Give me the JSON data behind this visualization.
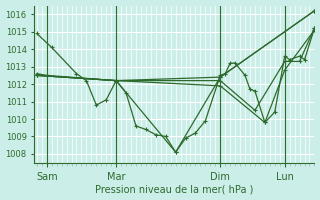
{
  "xlabel": "Pression niveau de la mer( hPa )",
  "bg_color": "#cceee8",
  "grid_color": "#b0d8d4",
  "line_color": "#2d6a2d",
  "ylim": [
    1007.5,
    1016.5
  ],
  "xlim": [
    -0.5,
    56
  ],
  "yticks": [
    1008,
    1009,
    1010,
    1011,
    1012,
    1013,
    1014,
    1015,
    1016
  ],
  "xtick_labels": [
    "Sam",
    "Mar",
    "Dim",
    "Lun"
  ],
  "xtick_positions": [
    2,
    16,
    37,
    50
  ],
  "vline_positions": [
    2,
    16,
    37,
    50
  ],
  "lines": [
    [
      [
        0,
        1014.9
      ],
      [
        3,
        1014.1
      ],
      [
        8,
        1012.6
      ],
      [
        10,
        1012.2
      ],
      [
        12,
        1010.8
      ],
      [
        14,
        1011.1
      ],
      [
        16,
        1012.2
      ],
      [
        18,
        1011.5
      ],
      [
        20,
        1009.6
      ],
      [
        22,
        1009.4
      ],
      [
        24,
        1009.1
      ],
      [
        26,
        1009.0
      ],
      [
        28,
        1008.1
      ],
      [
        30,
        1008.9
      ],
      [
        32,
        1009.2
      ],
      [
        34,
        1009.9
      ],
      [
        37,
        1012.5
      ],
      [
        38,
        1012.6
      ],
      [
        39,
        1013.2
      ],
      [
        40,
        1013.2
      ],
      [
        42,
        1012.5
      ],
      [
        43,
        1011.7
      ],
      [
        44,
        1011.6
      ],
      [
        46,
        1009.8
      ],
      [
        48,
        1010.4
      ],
      [
        50,
        1013.6
      ],
      [
        51,
        1013.4
      ],
      [
        53,
        1013.6
      ],
      [
        54,
        1013.4
      ],
      [
        56,
        1015.2
      ]
    ],
    [
      [
        0,
        1012.6
      ],
      [
        2,
        1012.5
      ],
      [
        16,
        1012.2
      ],
      [
        37,
        1012.4
      ],
      [
        56,
        1016.2
      ]
    ],
    [
      [
        0,
        1012.5
      ],
      [
        16,
        1012.2
      ],
      [
        28,
        1008.1
      ],
      [
        37,
        1012.4
      ],
      [
        56,
        1016.2
      ]
    ],
    [
      [
        0,
        1012.5
      ],
      [
        16,
        1012.2
      ],
      [
        37,
        1011.9
      ],
      [
        46,
        1009.8
      ],
      [
        50,
        1012.8
      ],
      [
        56,
        1015.1
      ]
    ],
    [
      [
        0,
        1012.5
      ],
      [
        16,
        1012.2
      ],
      [
        37,
        1012.2
      ],
      [
        44,
        1010.5
      ],
      [
        50,
        1013.3
      ],
      [
        53,
        1013.3
      ],
      [
        56,
        1015.2
      ]
    ]
  ]
}
